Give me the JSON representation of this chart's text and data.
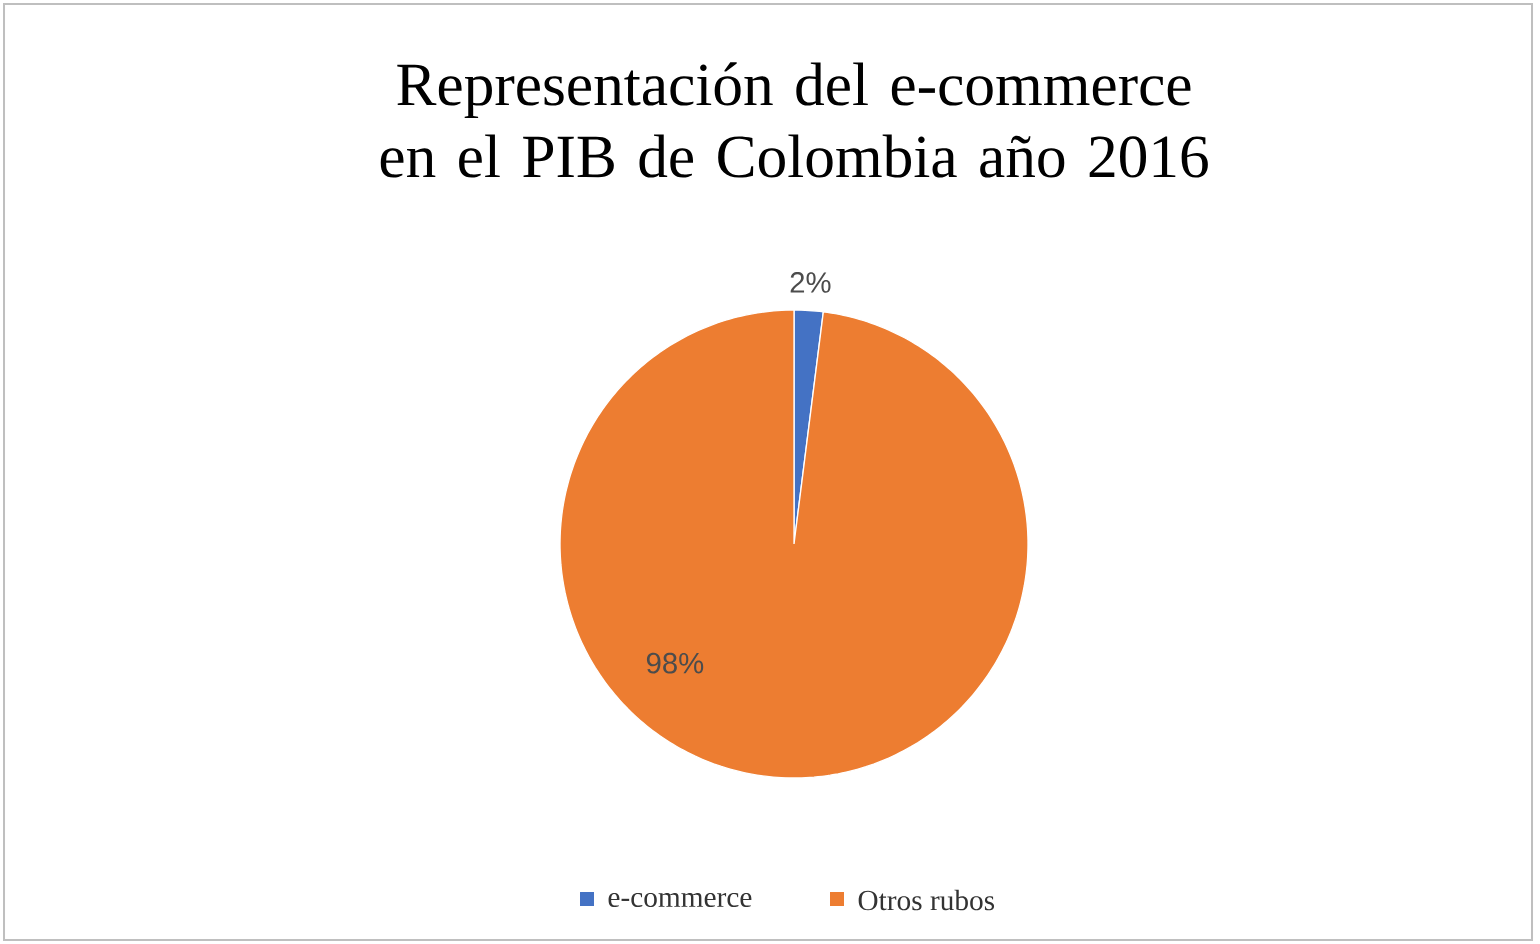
{
  "chart_data": {
    "type": "pie",
    "title": "Representación del e-commerce en el PIB de Colombia año 2016",
    "categories": [
      "e-commerce",
      "Otros rubos"
    ],
    "values": [
      2,
      98
    ],
    "value_labels": [
      "2%",
      "98%"
    ],
    "colors": [
      "#4472c4",
      "#ed7d31"
    ],
    "legend": "bottom"
  }
}
